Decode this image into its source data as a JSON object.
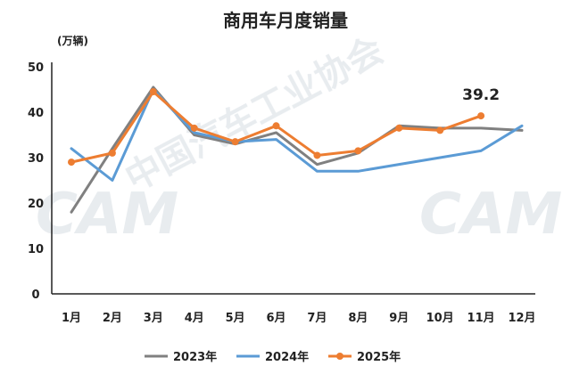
{
  "chart_data": {
    "type": "line",
    "title": "商用车月度销量",
    "unit_label": "(万辆)",
    "categories": [
      "1月",
      "2月",
      "3月",
      "4月",
      "5月",
      "6月",
      "7月",
      "8月",
      "9月",
      "10月",
      "11月",
      "12月"
    ],
    "ylim": [
      0,
      50
    ],
    "yticks": [
      0,
      10,
      20,
      30,
      40,
      50
    ],
    "grid": false,
    "legend_position": "bottom",
    "series": [
      {
        "name": "2023年",
        "color": "#808080",
        "markers": false,
        "values": [
          18,
          32,
          45.5,
          35,
          33,
          35.5,
          28.5,
          31,
          37,
          36.5,
          36.5,
          36
        ]
      },
      {
        "name": "2024年",
        "color": "#5b9bd5",
        "markers": false,
        "values": [
          32,
          25,
          45,
          35.5,
          33.5,
          34,
          27,
          27,
          28.5,
          30,
          31.5,
          37
        ]
      },
      {
        "name": "2025年",
        "color": "#ed7d31",
        "markers": true,
        "values": [
          29,
          31,
          44.5,
          36.5,
          33.5,
          37,
          30.5,
          31.5,
          36.5,
          36,
          39.2,
          null
        ]
      }
    ],
    "annotations": [
      {
        "text": "39.2",
        "series": "2025年",
        "category": "11月"
      }
    ]
  },
  "watermark": {
    "logo_text": "CAM",
    "org_name": "中国汽车工业协会"
  }
}
